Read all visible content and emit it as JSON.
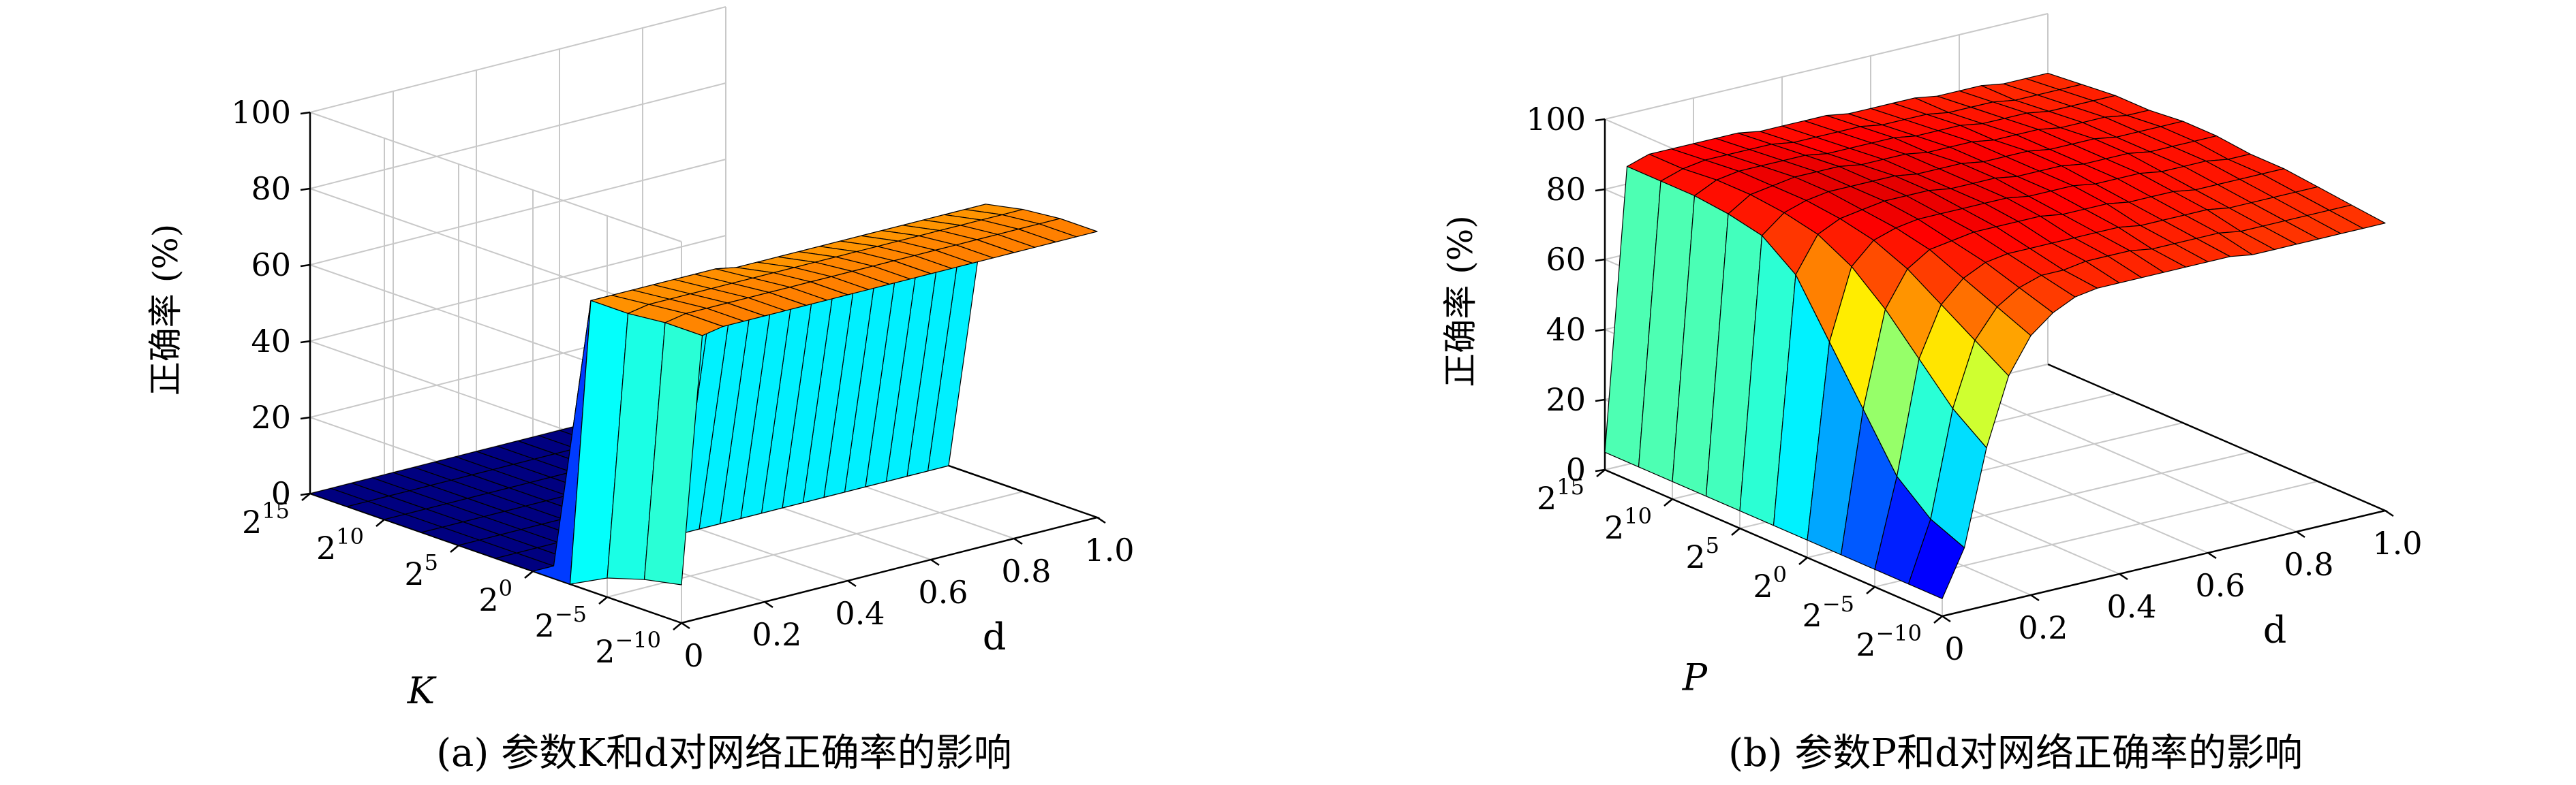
{
  "chart_data": [
    {
      "type": "surface3d",
      "caption": "(a) 参数K和d对网络正确率的影响",
      "zlabel": "正确率 (%)",
      "xlabel": "K",
      "ylabel": "d",
      "zlim": [
        0,
        100
      ],
      "z_ticks": [
        "0",
        "20",
        "40",
        "60",
        "80",
        "100"
      ],
      "x_ticks": [
        {
          "base": "2",
          "exp": "15"
        },
        {
          "base": "2",
          "exp": "10"
        },
        {
          "base": "2",
          "exp": "5"
        },
        {
          "base": "2",
          "exp": "0"
        },
        {
          "base": "2",
          "exp": "−5"
        },
        {
          "base": "2",
          "exp": "−10"
        }
      ],
      "y_ticks": [
        "0",
        "0.2",
        "0.4",
        "0.6",
        "0.8",
        "1.0"
      ],
      "grid": true,
      "colormap": "jet",
      "d": [
        0,
        0.05,
        0.1,
        0.15,
        0.2,
        0.25,
        0.3,
        0.35,
        0.4,
        0.45,
        0.5,
        0.55,
        0.6,
        0.65,
        0.7,
        0.75,
        0.8,
        0.85,
        0.9,
        0.95,
        1.0
      ],
      "log2_param": [
        15,
        12.5,
        10,
        7.5,
        5,
        2.5,
        0,
        -2.5,
        -5,
        -7.5,
        -10
      ],
      "accuracy": [
        [
          0,
          0,
          0,
          0,
          0,
          0,
          0,
          0,
          0,
          0,
          0,
          0,
          0,
          0,
          0,
          0,
          0,
          0,
          0,
          0,
          0
        ],
        [
          0,
          0,
          0,
          0,
          0,
          0,
          0,
          0,
          0,
          0,
          0,
          0,
          0,
          0,
          0,
          0,
          0,
          0,
          0,
          0,
          0
        ],
        [
          0,
          0,
          0,
          0,
          0,
          0,
          0,
          0,
          0,
          0,
          0,
          0,
          0,
          0,
          0,
          0,
          0,
          0,
          0,
          0,
          0
        ],
        [
          0,
          0,
          0,
          0,
          0,
          0,
          0,
          0,
          0,
          0,
          0,
          0,
          0,
          0,
          0,
          0,
          0,
          0,
          0,
          0,
          0
        ],
        [
          0,
          0,
          0,
          0,
          0,
          0,
          0,
          0,
          0,
          0,
          0,
          0,
          0,
          0,
          0,
          0,
          0,
          0,
          0,
          0,
          0
        ],
        [
          0,
          0,
          0,
          0,
          0,
          0,
          0,
          0,
          0,
          0,
          0,
          0,
          0,
          0,
          0,
          0,
          0,
          0,
          0,
          0,
          0
        ],
        [
          0,
          0,
          0,
          0,
          0,
          0,
          0,
          0,
          0,
          0,
          0,
          0,
          0,
          0,
          0,
          0,
          0,
          0,
          0,
          0,
          0
        ],
        [
          0,
          73,
          73,
          73,
          73,
          73,
          73,
          73,
          72,
          72,
          72,
          72,
          72,
          72,
          72,
          72,
          72,
          72,
          72,
          72,
          72
        ],
        [
          5,
          73,
          74,
          74,
          74,
          74,
          74,
          74,
          74,
          74,
          74,
          74,
          74,
          74,
          74,
          74,
          74,
          74,
          74,
          74,
          74
        ],
        [
          8,
          74,
          75,
          75,
          75,
          75,
          75,
          75,
          75,
          75,
          75,
          75,
          75,
          75,
          75,
          75,
          75,
          75,
          75,
          75,
          75
        ],
        [
          10,
          74,
          75,
          75,
          75,
          75,
          75,
          75,
          75,
          75,
          75,
          75,
          75,
          75,
          75,
          75,
          75,
          75,
          75,
          75,
          75
        ]
      ]
    },
    {
      "type": "surface3d",
      "caption": "(b) 参数P和d对网络正确率的影响",
      "zlabel": "正确率 (%)",
      "xlabel": "P",
      "ylabel": "d",
      "zlim": [
        0,
        100
      ],
      "z_ticks": [
        "0",
        "20",
        "40",
        "60",
        "80",
        "100"
      ],
      "x_ticks": [
        {
          "base": "2",
          "exp": "15"
        },
        {
          "base": "2",
          "exp": "10"
        },
        {
          "base": "2",
          "exp": "5"
        },
        {
          "base": "2",
          "exp": "0"
        },
        {
          "base": "2",
          "exp": "−5"
        },
        {
          "base": "2",
          "exp": "−10"
        }
      ],
      "y_ticks": [
        "0",
        "0.2",
        "0.4",
        "0.6",
        "0.8",
        "1.0"
      ],
      "grid": true,
      "colormap": "jet",
      "d": [
        0,
        0.05,
        0.1,
        0.15,
        0.2,
        0.25,
        0.3,
        0.35,
        0.4,
        0.45,
        0.5,
        0.55,
        0.6,
        0.65,
        0.7,
        0.75,
        0.8,
        0.85,
        0.9,
        0.95,
        1.0
      ],
      "log2_param": [
        15,
        12.5,
        10,
        7.5,
        5,
        2.5,
        0,
        -2.5,
        -5,
        -7.5,
        -10
      ],
      "accuracy": [
        [
          5,
          85,
          87,
          87,
          87,
          87,
          87,
          86,
          86,
          86,
          86,
          85,
          85,
          85,
          85,
          84,
          84,
          84,
          83,
          83,
          83
        ],
        [
          5,
          85,
          87,
          88,
          88,
          88,
          88,
          87,
          87,
          87,
          87,
          86,
          86,
          86,
          85,
          85,
          85,
          84,
          84,
          84,
          84
        ],
        [
          5,
          85,
          88,
          89,
          89,
          89,
          89,
          88,
          88,
          88,
          88,
          87,
          87,
          87,
          86,
          86,
          86,
          85,
          85,
          85,
          85
        ],
        [
          5,
          84,
          88,
          89,
          90,
          90,
          90,
          89,
          89,
          89,
          88,
          88,
          88,
          87,
          87,
          87,
          86,
          86,
          86,
          85,
          85
        ],
        [
          5,
          82,
          87,
          89,
          90,
          90,
          90,
          90,
          89,
          89,
          89,
          88,
          88,
          88,
          87,
          87,
          87,
          86,
          86,
          86,
          86
        ],
        [
          5,
          75,
          85,
          88,
          89,
          90,
          90,
          90,
          89,
          89,
          89,
          88,
          88,
          88,
          87,
          87,
          87,
          86,
          86,
          86,
          86
        ],
        [
          5,
          60,
          80,
          86,
          88,
          89,
          89,
          89,
          89,
          89,
          88,
          88,
          88,
          87,
          87,
          87,
          86,
          86,
          86,
          85,
          85
        ],
        [
          5,
          45,
          72,
          82,
          86,
          87,
          88,
          88,
          88,
          88,
          87,
          87,
          87,
          86,
          86,
          86,
          85,
          85,
          85,
          85,
          85
        ],
        [
          5,
          30,
          62,
          76,
          82,
          85,
          86,
          86,
          86,
          86,
          86,
          86,
          85,
          85,
          85,
          85,
          84,
          84,
          84,
          84,
          84
        ],
        [
          5,
          22,
          52,
          70,
          78,
          82,
          84,
          84,
          85,
          85,
          85,
          84,
          84,
          84,
          84,
          83,
          83,
          83,
          83,
          83,
          83
        ],
        [
          5,
          18,
          45,
          64,
          74,
          79,
          82,
          83,
          83,
          83,
          83,
          83,
          83,
          83,
          82,
          82,
          82,
          82,
          82,
          82,
          82
        ]
      ]
    }
  ]
}
